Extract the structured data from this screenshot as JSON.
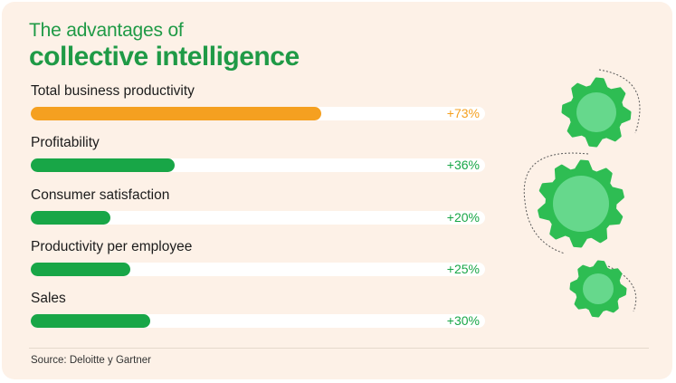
{
  "title": {
    "line1": "The advantages of",
    "line2": "collective intelligence"
  },
  "source": "Source: Deloitte y Gartner",
  "colors": {
    "background": "#fdf1e7",
    "title": "#1f9a46",
    "highlight": "#f5a020",
    "bar": "#18a647",
    "track": "#ffffff",
    "gear": "#2ebd53",
    "gear_center": "#66d88c"
  },
  "chart_data": {
    "type": "bar",
    "orientation": "horizontal",
    "categories": [
      "Total business productivity",
      "Profitability",
      "Consumer satisfaction",
      "Productivity per employee",
      "Sales"
    ],
    "values": [
      73,
      36,
      20,
      25,
      30
    ],
    "value_labels": [
      "+73%",
      "+36%",
      "+20%",
      "+25%",
      "+30%"
    ],
    "highlighted_index": 0,
    "unit": "%",
    "xlim": [
      0,
      114
    ]
  },
  "decoration": {
    "gear_icons": [
      "gear-icon-top",
      "gear-icon-middle",
      "gear-icon-bottom"
    ]
  }
}
